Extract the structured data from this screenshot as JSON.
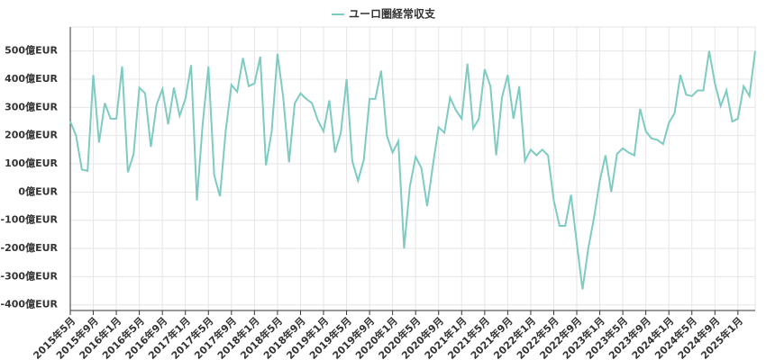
{
  "chart_data": {
    "type": "line",
    "categories": [
      "2015年5月",
      null,
      null,
      null,
      "2015年9月",
      null,
      null,
      null,
      "2016年1月",
      null,
      null,
      null,
      "2016年5月",
      null,
      null,
      null,
      "2016年9月",
      null,
      null,
      null,
      "2017年1月",
      null,
      null,
      null,
      "2017年5月",
      null,
      null,
      null,
      "2017年9月",
      null,
      null,
      null,
      "2018年1月",
      null,
      null,
      null,
      "2018年5月",
      null,
      null,
      null,
      "2018年9月",
      null,
      null,
      null,
      "2019年1月",
      null,
      null,
      null,
      "2019年5月",
      null,
      null,
      null,
      "2019年9月",
      null,
      null,
      null,
      "2020年1月",
      null,
      null,
      null,
      "2020年5月",
      null,
      null,
      null,
      "2020年9月",
      null,
      null,
      null,
      "2021年1月",
      null,
      null,
      null,
      "2021年5月",
      null,
      null,
      null,
      "2021年9月",
      null,
      null,
      null,
      "2022年1月",
      null,
      null,
      null,
      "2022年5月",
      null,
      null,
      null,
      "2022年9月",
      null,
      null,
      null,
      "2023年1月",
      null,
      null,
      null,
      "2023年5月",
      null,
      null,
      null,
      "2023年9月",
      null,
      null,
      null,
      "2024年1月",
      null,
      null,
      null,
      "2024年5月",
      null,
      null,
      null,
      "2024年9月",
      null,
      null,
      null,
      "2025年1月",
      null,
      null,
      null
    ],
    "series": [
      {
        "name": "ユーロ圏経常収支",
        "color": "#7ecbc1",
        "values": [
          250,
          200,
          80,
          75,
          415,
          175,
          315,
          260,
          260,
          445,
          70,
          135,
          370,
          350,
          160,
          310,
          365,
          240,
          370,
          270,
          330,
          450,
          -30,
          240,
          445,
          60,
          -15,
          215,
          380,
          355,
          475,
          375,
          385,
          480,
          95,
          215,
          490,
          335,
          105,
          315,
          350,
          330,
          315,
          255,
          215,
          325,
          140,
          210,
          400,
          110,
          40,
          115,
          330,
          330,
          430,
          200,
          140,
          180,
          -200,
          20,
          125,
          85,
          -50,
          95,
          230,
          210,
          335,
          290,
          260,
          455,
          225,
          260,
          435,
          375,
          130,
          335,
          415,
          260,
          375,
          110,
          150,
          130,
          150,
          130,
          -30,
          -120,
          -120,
          -10,
          -180,
          -345,
          -200,
          -90,
          40,
          130,
          0,
          135,
          155,
          140,
          130,
          295,
          215,
          190,
          185,
          170,
          245,
          280,
          415,
          345,
          340,
          360,
          360,
          500,
          385,
          305,
          360,
          250,
          260,
          375,
          340,
          500
        ]
      }
    ],
    "ylim": [
      -420,
      585
    ],
    "yticks": [
      {
        "value": -400,
        "label": "-400億EUR"
      },
      {
        "value": -300,
        "label": "-300億EUR"
      },
      {
        "value": -200,
        "label": "-200億EUR"
      },
      {
        "value": -100,
        "label": "-100億EUR"
      },
      {
        "value": 0,
        "label": "0億EUR"
      },
      {
        "value": 100,
        "label": "100億EUR"
      },
      {
        "value": 200,
        "label": "200億EUR"
      },
      {
        "value": 300,
        "label": "300億EUR"
      },
      {
        "value": 400,
        "label": "400億EUR"
      },
      {
        "value": 500,
        "label": "500億EUR"
      }
    ],
    "grid": true,
    "legend": "top"
  }
}
